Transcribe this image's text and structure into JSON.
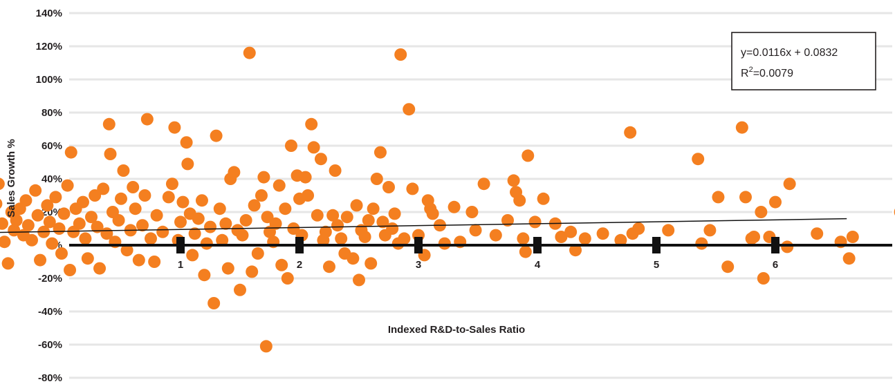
{
  "chart_data": {
    "type": "scatter",
    "xlabel": "Indexed R&D-to-Sales Ratio",
    "ylabel": "Sales Growth %",
    "xlim": [
      -0.9,
      7.2
    ],
    "ylim": [
      -80,
      140
    ],
    "x_ticks": [
      "1",
      "2",
      "3",
      "4",
      "5",
      "6"
    ],
    "y_ticks": [
      "140%",
      "120%",
      "100%",
      "80%",
      "60%",
      "40%",
      "20%",
      "0%",
      "-20%",
      "-40%",
      "-60%",
      "-80%"
    ],
    "grid": true,
    "colors": {
      "points": "#f47f20",
      "grid": "#e6e6e6",
      "axis": "#111111",
      "trend": "#111111"
    },
    "trendline": {
      "slope": 0.0116,
      "intercept": 0.0832,
      "x_range": [
        -0.85,
        6.6
      ]
    },
    "annotation": {
      "equation": "y=0.0116x + 0.0832",
      "r2_prefix": "R",
      "r2_sup": "2",
      "r2_value": "=0.0079"
    },
    "points": [
      [
        -0.85,
        35
      ],
      [
        -0.75,
        17
      ],
      [
        -0.72,
        21
      ],
      [
        -0.7,
        10
      ],
      [
        -0.68,
        35
      ],
      [
        -0.67,
        -10
      ],
      [
        -0.65,
        45
      ],
      [
        -0.62,
        30
      ],
      [
        -0.6,
        5
      ],
      [
        -0.58,
        54
      ],
      [
        -0.55,
        25
      ],
      [
        -0.53,
        37
      ],
      [
        -0.5,
        13
      ],
      [
        -0.48,
        2
      ],
      [
        -0.45,
        -11
      ],
      [
        -0.42,
        20
      ],
      [
        -0.4,
        9
      ],
      [
        -0.38,
        15
      ],
      [
        -0.35,
        22
      ],
      [
        -0.32,
        6
      ],
      [
        -0.3,
        27
      ],
      [
        -0.28,
        12
      ],
      [
        -0.25,
        3
      ],
      [
        -0.22,
        33
      ],
      [
        -0.2,
        18
      ],
      [
        -0.18,
        -9
      ],
      [
        -0.15,
        8
      ],
      [
        -0.12,
        24
      ],
      [
        -0.1,
        14
      ],
      [
        -0.08,
        1
      ],
      [
        -0.05,
        29
      ],
      [
        -0.02,
        10
      ],
      [
        0.0,
        -5
      ],
      [
        0.02,
        19
      ],
      [
        0.05,
        36
      ],
      [
        0.07,
        -15
      ],
      [
        0.08,
        56
      ],
      [
        0.1,
        8
      ],
      [
        0.12,
        22
      ],
      [
        0.15,
        13
      ],
      [
        0.18,
        26
      ],
      [
        0.2,
        4
      ],
      [
        0.22,
        -8
      ],
      [
        0.25,
        17
      ],
      [
        0.28,
        30
      ],
      [
        0.3,
        11
      ],
      [
        0.32,
        -14
      ],
      [
        0.35,
        34
      ],
      [
        0.38,
        7
      ],
      [
        0.4,
        73
      ],
      [
        0.41,
        55
      ],
      [
        0.43,
        20
      ],
      [
        0.45,
        2
      ],
      [
        0.48,
        15
      ],
      [
        0.5,
        28
      ],
      [
        0.52,
        45
      ],
      [
        0.55,
        -3
      ],
      [
        0.58,
        9
      ],
      [
        0.6,
        35
      ],
      [
        0.62,
        22
      ],
      [
        0.65,
        -9
      ],
      [
        0.68,
        12
      ],
      [
        0.7,
        30
      ],
      [
        0.72,
        76
      ],
      [
        0.75,
        4
      ],
      [
        0.78,
        -10
      ],
      [
        0.8,
        18
      ],
      [
        0.85,
        8
      ],
      [
        0.9,
        29
      ],
      [
        0.93,
        37
      ],
      [
        0.95,
        71
      ],
      [
        0.98,
        3
      ],
      [
        1.0,
        14
      ],
      [
        1.02,
        26
      ],
      [
        1.05,
        62
      ],
      [
        1.06,
        49
      ],
      [
        1.08,
        19
      ],
      [
        1.1,
        -6
      ],
      [
        1.12,
        7
      ],
      [
        1.15,
        16
      ],
      [
        1.18,
        27
      ],
      [
        1.2,
        -18
      ],
      [
        1.22,
        1
      ],
      [
        1.25,
        11
      ],
      [
        1.28,
        -35
      ],
      [
        1.3,
        66
      ],
      [
        1.33,
        22
      ],
      [
        1.35,
        3
      ],
      [
        1.38,
        13
      ],
      [
        1.4,
        -14
      ],
      [
        1.42,
        40
      ],
      [
        1.45,
        44
      ],
      [
        1.48,
        9
      ],
      [
        1.5,
        -27
      ],
      [
        1.52,
        6
      ],
      [
        1.55,
        15
      ],
      [
        1.58,
        116
      ],
      [
        1.6,
        -16
      ],
      [
        1.62,
        24
      ],
      [
        1.65,
        -5
      ],
      [
        1.68,
        30
      ],
      [
        1.7,
        41
      ],
      [
        1.72,
        -61
      ],
      [
        1.73,
        17
      ],
      [
        1.75,
        8
      ],
      [
        1.78,
        2
      ],
      [
        1.8,
        13
      ],
      [
        1.83,
        36
      ],
      [
        1.85,
        -12
      ],
      [
        1.88,
        22
      ],
      [
        1.9,
        -20
      ],
      [
        1.93,
        60
      ],
      [
        1.95,
        10
      ],
      [
        1.98,
        42
      ],
      [
        2.0,
        28
      ],
      [
        2.02,
        6
      ],
      [
        2.05,
        41
      ],
      [
        2.07,
        30
      ],
      [
        2.1,
        73
      ],
      [
        2.12,
        59
      ],
      [
        2.15,
        18
      ],
      [
        2.18,
        52
      ],
      [
        2.2,
        3
      ],
      [
        2.22,
        8
      ],
      [
        2.25,
        -13
      ],
      [
        2.28,
        18
      ],
      [
        2.3,
        45
      ],
      [
        2.32,
        12
      ],
      [
        2.35,
        4
      ],
      [
        2.38,
        -5
      ],
      [
        2.4,
        17
      ],
      [
        2.45,
        -8
      ],
      [
        2.48,
        24
      ],
      [
        2.5,
        -21
      ],
      [
        2.52,
        9
      ],
      [
        2.55,
        5
      ],
      [
        2.58,
        15
      ],
      [
        2.6,
        -11
      ],
      [
        2.62,
        22
      ],
      [
        2.65,
        40
      ],
      [
        2.68,
        56
      ],
      [
        2.7,
        14
      ],
      [
        2.72,
        6
      ],
      [
        2.75,
        35
      ],
      [
        2.78,
        10
      ],
      [
        2.8,
        19
      ],
      [
        2.83,
        1
      ],
      [
        2.85,
        115
      ],
      [
        2.88,
        4
      ],
      [
        2.92,
        82
      ],
      [
        2.95,
        34
      ],
      [
        3.0,
        6
      ],
      [
        3.05,
        -6
      ],
      [
        3.08,
        27
      ],
      [
        3.1,
        22
      ],
      [
        3.12,
        19
      ],
      [
        3.18,
        12
      ],
      [
        3.22,
        1
      ],
      [
        3.3,
        23
      ],
      [
        3.35,
        2
      ],
      [
        3.45,
        20
      ],
      [
        3.48,
        9
      ],
      [
        3.55,
        37
      ],
      [
        3.65,
        6
      ],
      [
        3.75,
        15
      ],
      [
        3.8,
        39
      ],
      [
        3.82,
        32
      ],
      [
        3.85,
        27
      ],
      [
        3.88,
        4
      ],
      [
        3.9,
        -4
      ],
      [
        3.92,
        54
      ],
      [
        3.98,
        14
      ],
      [
        4.05,
        28
      ],
      [
        4.15,
        13
      ],
      [
        4.2,
        5
      ],
      [
        4.28,
        8
      ],
      [
        4.32,
        -3
      ],
      [
        4.4,
        4
      ],
      [
        4.55,
        7
      ],
      [
        4.7,
        3
      ],
      [
        4.78,
        68
      ],
      [
        4.8,
        7
      ],
      [
        4.85,
        10
      ],
      [
        5.1,
        9
      ],
      [
        5.35,
        52
      ],
      [
        5.38,
        1
      ],
      [
        5.45,
        9
      ],
      [
        5.52,
        29
      ],
      [
        5.6,
        -13
      ],
      [
        5.72,
        71
      ],
      [
        5.75,
        29
      ],
      [
        5.8,
        4
      ],
      [
        5.82,
        5
      ],
      [
        5.88,
        20
      ],
      [
        5.9,
        -20
      ],
      [
        5.95,
        5
      ],
      [
        6.0,
        26
      ],
      [
        6.12,
        37
      ],
      [
        6.1,
        -1
      ],
      [
        6.35,
        7
      ],
      [
        6.55,
        2
      ],
      [
        6.62,
        -8
      ],
      [
        6.65,
        5
      ],
      [
        7.05,
        20
      ]
    ]
  }
}
